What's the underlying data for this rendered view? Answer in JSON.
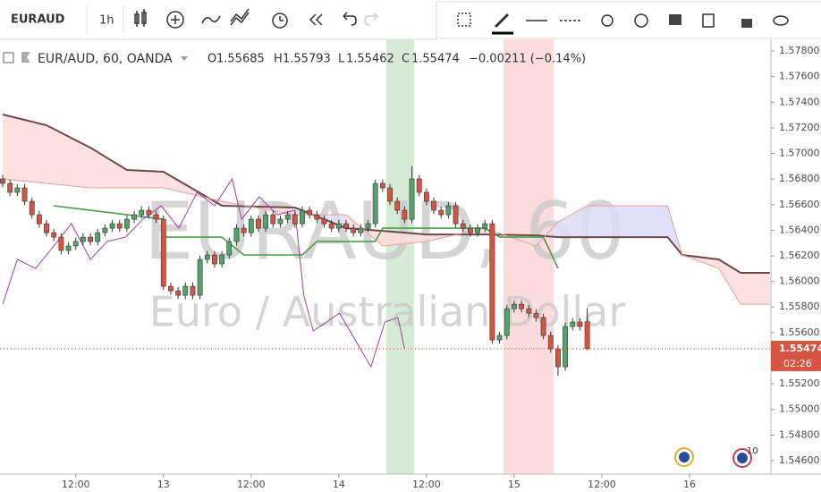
{
  "toolbar": {
    "symbol": "EURAUD",
    "interval": "1h"
  },
  "countdown": "02:26",
  "events_badge": "10",
  "chart_data": {
    "type": "candlestick",
    "symbol_title": "EUR/AUD, 60, OANDA",
    "ohlc_labels": [
      "O",
      "H",
      "L",
      "C"
    ],
    "change_label": "−0.00211 (−0.14%)",
    "watermark": "EURAUD, 60",
    "watermark_subtitle": "Euro / Australian Dollar",
    "up_color": "#53a36b",
    "down_color": "#d75442",
    "x": [
      0,
      1,
      2,
      3,
      4,
      5,
      6,
      7,
      8,
      9,
      10,
      11,
      12,
      13,
      14,
      15,
      16,
      17,
      18,
      19,
      20,
      21,
      22,
      23,
      24,
      25,
      26,
      27,
      28,
      29,
      30,
      31,
      32,
      33,
      34,
      35,
      36,
      37,
      38,
      39,
      40,
      41,
      42,
      43,
      44,
      45,
      46,
      47,
      48,
      49,
      50,
      51,
      52,
      53,
      54,
      55,
      56,
      57,
      58,
      59,
      60,
      61,
      62,
      63,
      64,
      65,
      66,
      67,
      68,
      69,
      70,
      71,
      72,
      73,
      74,
      75,
      76,
      77,
      78,
      79,
      80
    ],
    "open": [
      1.56801,
      1.56766,
      1.56696,
      1.56731,
      1.56626,
      1.56521,
      1.56451,
      1.56381,
      1.56346,
      1.56242,
      1.56277,
      1.56312,
      1.56346,
      1.56312,
      1.56381,
      1.56416,
      1.56451,
      1.56416,
      1.56486,
      1.56521,
      1.56556,
      1.56521,
      1.56486,
      1.55962,
      1.55927,
      1.55892,
      1.55962,
      1.55892,
      1.56172,
      1.56207,
      1.56137,
      1.56207,
      1.56312,
      1.56416,
      1.56381,
      1.56486,
      1.56416,
      1.56521,
      1.56451,
      1.56486,
      1.56521,
      1.56451,
      1.56556,
      1.56521,
      1.56486,
      1.56451,
      1.56416,
      1.56451,
      1.56416,
      1.56381,
      1.56416,
      1.56451,
      1.56766,
      1.56731,
      1.56626,
      1.56556,
      1.56486,
      1.56801,
      1.56696,
      1.56626,
      1.56556,
      1.56521,
      1.56591,
      1.56451,
      1.56416,
      1.56381,
      1.56416,
      1.56451,
      1.55543,
      1.55578,
      1.55787,
      1.55822,
      1.55787,
      1.55752,
      1.55718,
      1.55578,
      1.55473,
      1.55333,
      1.55648,
      1.55683,
      1.55685
    ],
    "high": [
      1.56831,
      1.56796,
      1.56761,
      1.56761,
      1.56656,
      1.56551,
      1.56481,
      1.56411,
      1.56376,
      1.56307,
      1.56342,
      1.56376,
      1.56376,
      1.56411,
      1.56446,
      1.56481,
      1.56481,
      1.56516,
      1.56551,
      1.56586,
      1.56586,
      1.56551,
      1.56516,
      1.55992,
      1.55957,
      1.55992,
      1.55992,
      1.56202,
      1.56237,
      1.56237,
      1.56237,
      1.56342,
      1.56446,
      1.56446,
      1.56516,
      1.56516,
      1.56551,
      1.56551,
      1.56516,
      1.56551,
      1.56551,
      1.56586,
      1.56586,
      1.56551,
      1.56516,
      1.56481,
      1.56481,
      1.56481,
      1.56446,
      1.56446,
      1.56481,
      1.56796,
      1.56796,
      1.56761,
      1.56656,
      1.56586,
      1.56901,
      1.56831,
      1.56726,
      1.56656,
      1.56586,
      1.56621,
      1.56621,
      1.56481,
      1.56446,
      1.56446,
      1.56481,
      1.56481,
      1.55608,
      1.55817,
      1.55852,
      1.55852,
      1.55817,
      1.55782,
      1.55748,
      1.55608,
      1.55503,
      1.55678,
      1.55713,
      1.55713,
      1.55793
    ],
    "low": [
      1.56736,
      1.56666,
      1.56666,
      1.56596,
      1.56491,
      1.56421,
      1.56351,
      1.56316,
      1.56212,
      1.56212,
      1.56247,
      1.56282,
      1.56282,
      1.56282,
      1.56351,
      1.56386,
      1.56386,
      1.56386,
      1.56456,
      1.56491,
      1.56491,
      1.56456,
      1.55932,
      1.55897,
      1.55862,
      1.55862,
      1.55862,
      1.55862,
      1.56142,
      1.56107,
      1.56107,
      1.56177,
      1.56282,
      1.56351,
      1.56351,
      1.56386,
      1.56386,
      1.56421,
      1.56421,
      1.56456,
      1.56421,
      1.56421,
      1.56491,
      1.56456,
      1.56421,
      1.56386,
      1.56386,
      1.56386,
      1.56351,
      1.56351,
      1.56386,
      1.56421,
      1.56701,
      1.56596,
      1.56526,
      1.56456,
      1.56456,
      1.56666,
      1.56596,
      1.56526,
      1.56491,
      1.56491,
      1.56421,
      1.56386,
      1.56351,
      1.56351,
      1.56386,
      1.55513,
      1.55513,
      1.55548,
      1.55757,
      1.55757,
      1.55722,
      1.55688,
      1.55548,
      1.55443,
      1.55263,
      1.55303,
      1.55618,
      1.55618,
      1.55462
    ],
    "close": [
      1.56766,
      1.56696,
      1.56731,
      1.56626,
      1.56521,
      1.56451,
      1.56381,
      1.56346,
      1.56242,
      1.56277,
      1.56312,
      1.56346,
      1.56312,
      1.56381,
      1.56416,
      1.56451,
      1.56416,
      1.56486,
      1.56521,
      1.56556,
      1.56521,
      1.56486,
      1.55962,
      1.55927,
      1.55892,
      1.55962,
      1.55892,
      1.56172,
      1.56207,
      1.56137,
      1.56207,
      1.56312,
      1.56416,
      1.56381,
      1.56486,
      1.56416,
      1.56521,
      1.56451,
      1.56486,
      1.56521,
      1.56451,
      1.56556,
      1.56521,
      1.56486,
      1.56451,
      1.56416,
      1.56451,
      1.56416,
      1.56381,
      1.56416,
      1.56451,
      1.56766,
      1.56731,
      1.56626,
      1.56556,
      1.56486,
      1.56801,
      1.56696,
      1.56626,
      1.56556,
      1.56521,
      1.56591,
      1.56451,
      1.56416,
      1.56381,
      1.56416,
      1.56451,
      1.55543,
      1.55578,
      1.55787,
      1.55822,
      1.55787,
      1.55752,
      1.55718,
      1.55578,
      1.55473,
      1.55333,
      1.55648,
      1.55683,
      1.55648,
      1.55474
    ],
    "cloud": {
      "x": [
        0,
        6,
        12,
        17,
        22,
        30,
        40,
        47,
        52,
        58,
        66,
        73,
        76,
        80,
        91,
        93,
        98,
        101,
        105
      ],
      "span_a": {
        "color": "#6b4a4a",
        "values": [
          1.57304,
          1.5722,
          1.57045,
          1.56871,
          1.56857,
          1.56591,
          1.56577,
          1.56416,
          1.56395,
          1.56367,
          1.56367,
          1.5636,
          1.56346,
          1.56346,
          1.56346,
          1.56207,
          1.56172,
          1.56067,
          1.56067
        ]
      },
      "span_b": {
        "color": "#e8a0a0",
        "values": [
          1.56801,
          1.56766,
          1.56731,
          1.56731,
          1.56731,
          1.56626,
          1.56521,
          1.56521,
          1.56277,
          1.56312,
          1.56416,
          1.56277,
          1.56465,
          1.56591,
          1.56591,
          1.56207,
          1.56102,
          1.55822,
          1.55822
        ]
      },
      "fill_a_above": "#fbdcdc",
      "fill_b_above": "#dcdcf6"
    },
    "lines": [
      {
        "color": "#4a9e4a",
        "x": [
          7,
          22,
          22,
          30,
          33,
          41,
          43,
          51,
          52,
          66,
          68,
          74,
          76
        ],
        "values": [
          1.56591,
          1.56486,
          1.56346,
          1.56346,
          1.56207,
          1.56207,
          1.56312,
          1.56312,
          1.56416,
          1.56416,
          1.56346,
          1.56346,
          1.56102
        ]
      },
      {
        "color": "#a040a0",
        "x": [
          0,
          2,
          4.5,
          7,
          9.4,
          12,
          14.3,
          16.8,
          19.2,
          21.7,
          24.1,
          26.6,
          29,
          31.4,
          32.7,
          35.1,
          37.6,
          40,
          41.2,
          42.5,
          46.1,
          48.6,
          50.4,
          52.3,
          54.1,
          55
        ],
        "values": [
          1.55822,
          1.56172,
          1.56102,
          1.56277,
          1.56451,
          1.56172,
          1.56312,
          1.56346,
          1.56486,
          1.56591,
          1.56416,
          1.56696,
          1.56591,
          1.56801,
          1.56486,
          1.56661,
          1.56521,
          1.56556,
          1.55892,
          1.55613,
          1.55752,
          1.55508,
          1.55333,
          1.55683,
          1.55718,
          1.55473
        ]
      }
    ],
    "xlim": [
      -0.37,
      105.14
    ],
    "xticks": [
      {
        "value": 10,
        "label": "12:00"
      },
      {
        "value": 22,
        "label": "13"
      },
      {
        "value": 34,
        "label": "12:00"
      },
      {
        "value": 46,
        "label": "14"
      },
      {
        "value": 58,
        "label": "12:00"
      },
      {
        "value": 70,
        "label": "15"
      },
      {
        "value": 82,
        "label": "12:00"
      },
      {
        "value": 94,
        "label": "16"
      }
    ],
    "ylim": [
      1.54495,
      1.57891
    ],
    "yticks": [
      {
        "value": 1.546,
        "label": "1.54600"
      },
      {
        "value": 1.548,
        "label": "1.54800"
      },
      {
        "value": 1.55,
        "label": "1.55000"
      },
      {
        "value": 1.552,
        "label": "1.55200"
      },
      {
        "value": 1.554,
        "label": "1.55400"
      },
      {
        "value": 1.556,
        "label": "1.55600"
      },
      {
        "value": 1.558,
        "label": "1.55800"
      },
      {
        "value": 1.56,
        "label": "1.56000"
      },
      {
        "value": 1.562,
        "label": "1.56200"
      },
      {
        "value": 1.564,
        "label": "1.56400"
      },
      {
        "value": 1.566,
        "label": "1.56600"
      },
      {
        "value": 1.568,
        "label": "1.56800"
      },
      {
        "value": 1.57,
        "label": "1.57000"
      },
      {
        "value": 1.572,
        "label": "1.57200"
      },
      {
        "value": 1.574,
        "label": "1.57400"
      },
      {
        "value": 1.576,
        "label": "1.57600"
      },
      {
        "value": 1.578,
        "label": "1.57800"
      }
    ]
  }
}
